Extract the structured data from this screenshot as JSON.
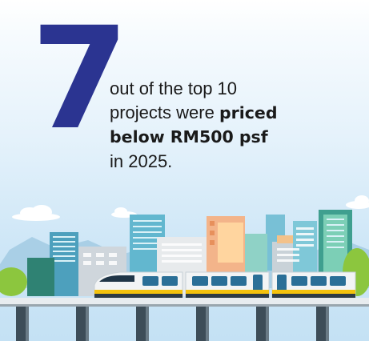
{
  "infographic": {
    "number": "7",
    "line1": "out of the top 10",
    "line2_regular": "projects were ",
    "line2_bold": "priced",
    "line3_bold": "below RM500 psf",
    "line4": "in 2025."
  },
  "colors": {
    "accent": "#2b3491",
    "text": "#1a1a1a",
    "sky": "#d6ecf9",
    "train_yellow": "#f4c20d",
    "bridge": "#3d4d58"
  },
  "illustration": {
    "subject": "elevated-train-city-skyline",
    "train_cars": 3
  }
}
